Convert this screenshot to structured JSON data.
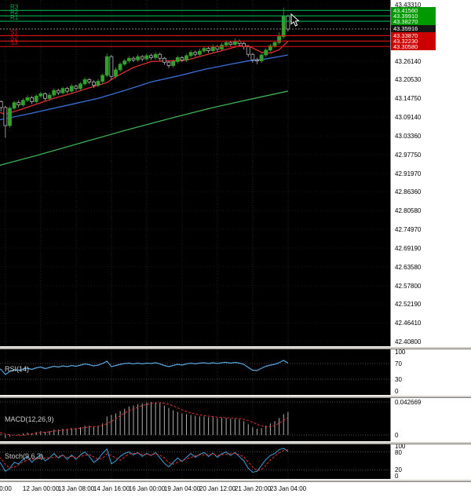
{
  "colors": {
    "background": "#000000",
    "axis_background": "#ffffff",
    "grid": "#242424",
    "hgrid": "#181818",
    "bull_candle": "#33a02c",
    "bear_candle": "#000000",
    "candle_outline": "#b8b8b8",
    "resistance_line": "#00b050",
    "support_line": "#dd1111",
    "resistance_badge": "#009a00",
    "support_badge": "#cc0000",
    "price_badge": "#151515",
    "current_price_line": "#9a9a9a",
    "rsi_line": "#58a6dd",
    "macd_histogram": "#b0b0b0",
    "macd_signal": "#e03232",
    "stoch_main": "#3f9fd8",
    "stoch_signal": "#e03232",
    "guide_dotted": "#505050",
    "indicator_label_text": "#cfcfcf",
    "axis_text": "#000000"
  },
  "chart_data": {
    "type": "candlestick",
    "description": "4-hour forex candlestick chart with pivot resistance/support levels, three moving averages and RSI, MACD, Stochastic subpanels",
    "time_axis_labels": [
      "0:00",
      "12 Jan 00:00",
      "13 Jan 08:00",
      "14 Jan 16:00",
      "16 Jan 00:00",
      "19 Jan 04:00",
      "20 Jan 12:00",
      "21 Jan 20:00",
      "23 Jan 04:00"
    ],
    "price_axis_labels": [
      "43.43310",
      "43.26140",
      "43.20530",
      "43.14750",
      "43.09140",
      "43.03360",
      "42.97750",
      "42.91970",
      "42.86360",
      "42.80580",
      "42.74970",
      "42.69190",
      "42.63580",
      "42.57800",
      "42.52190",
      "42.46410",
      "42.40800"
    ],
    "pivots": [
      {
        "name": "R3",
        "price": 43.4156,
        "label": "43.41560",
        "kind": "resistance"
      },
      {
        "name": "R2",
        "price": 43.3991,
        "label": "43.39910",
        "kind": "resistance"
      },
      {
        "name": "R1",
        "price": 43.3827,
        "label": "43.38270",
        "kind": "resistance"
      },
      {
        "name": "S1",
        "price": 43.3387,
        "label": "43.33870",
        "kind": "support"
      },
      {
        "name": "S2",
        "price": 43.3223,
        "label": "43.32230",
        "kind": "support"
      },
      {
        "name": "S3",
        "price": 43.3058,
        "label": "43.30580",
        "kind": "support"
      }
    ],
    "current_price": {
      "price": 43.35916,
      "label": "43.35916"
    },
    "candles": [
      [
        43.155,
        43.161,
        43.142,
        43.148
      ],
      [
        43.148,
        43.153,
        43.13,
        43.138
      ],
      [
        43.138,
        43.142,
        43.108,
        43.12
      ],
      [
        43.12,
        43.126,
        43.028,
        43.065
      ],
      [
        43.065,
        43.124,
        43.058,
        43.118
      ],
      [
        43.118,
        43.141,
        43.112,
        43.135
      ],
      [
        43.135,
        43.142,
        43.12,
        43.128
      ],
      [
        43.128,
        43.148,
        43.122,
        43.142
      ],
      [
        43.142,
        43.157,
        43.136,
        43.15
      ],
      [
        43.15,
        43.155,
        43.131,
        43.138
      ],
      [
        43.138,
        43.161,
        43.133,
        43.155
      ],
      [
        43.155,
        43.169,
        43.149,
        43.162
      ],
      [
        43.162,
        43.166,
        43.141,
        43.148
      ],
      [
        43.148,
        43.165,
        43.142,
        43.158
      ],
      [
        43.158,
        43.178,
        43.152,
        43.172
      ],
      [
        43.172,
        43.177,
        43.158,
        43.165
      ],
      [
        43.165,
        43.184,
        43.16,
        43.178
      ],
      [
        43.178,
        43.183,
        43.163,
        43.17
      ],
      [
        43.17,
        43.191,
        43.165,
        43.185
      ],
      [
        43.185,
        43.19,
        43.171,
        43.178
      ],
      [
        43.178,
        43.198,
        43.172,
        43.192
      ],
      [
        43.192,
        43.212,
        43.187,
        43.205
      ],
      [
        43.205,
        43.21,
        43.191,
        43.198
      ],
      [
        43.198,
        43.203,
        43.18,
        43.188
      ],
      [
        43.188,
        43.207,
        43.182,
        43.2
      ],
      [
        43.2,
        43.224,
        43.194,
        43.218
      ],
      [
        43.218,
        43.285,
        43.212,
        43.275
      ],
      [
        43.275,
        43.28,
        43.205,
        43.215
      ],
      [
        43.215,
        43.242,
        43.208,
        43.235
      ],
      [
        43.235,
        43.258,
        43.228,
        43.252
      ],
      [
        43.252,
        43.268,
        43.246,
        43.262
      ],
      [
        43.262,
        43.277,
        43.255,
        43.27
      ],
      [
        43.27,
        43.276,
        43.258,
        43.265
      ],
      [
        43.265,
        43.282,
        43.259,
        43.275
      ],
      [
        43.275,
        43.28,
        43.261,
        43.268
      ],
      [
        43.268,
        43.285,
        43.262,
        43.278
      ],
      [
        43.278,
        43.284,
        43.265,
        43.272
      ],
      [
        43.272,
        43.289,
        43.266,
        43.282
      ],
      [
        43.282,
        43.287,
        43.263,
        43.27
      ],
      [
        43.27,
        43.274,
        43.25,
        43.258
      ],
      [
        43.258,
        43.263,
        43.24,
        43.248
      ],
      [
        43.248,
        43.266,
        43.242,
        43.26
      ],
      [
        43.26,
        43.278,
        43.254,
        43.272
      ],
      [
        43.272,
        43.277,
        43.258,
        43.265
      ],
      [
        43.265,
        43.284,
        43.259,
        43.278
      ],
      [
        43.278,
        43.295,
        43.272,
        43.288
      ],
      [
        43.288,
        43.293,
        43.275,
        43.282
      ],
      [
        43.282,
        43.299,
        43.276,
        43.292
      ],
      [
        43.292,
        43.307,
        43.286,
        43.3
      ],
      [
        43.3,
        43.305,
        43.286,
        43.293
      ],
      [
        43.293,
        43.312,
        43.287,
        43.305
      ],
      [
        43.305,
        43.31,
        43.291,
        43.298
      ],
      [
        43.298,
        43.317,
        43.292,
        43.31
      ],
      [
        43.31,
        43.325,
        43.304,
        43.318
      ],
      [
        43.318,
        43.323,
        43.305,
        43.312
      ],
      [
        43.312,
        43.33,
        43.306,
        43.322
      ],
      [
        43.322,
        43.327,
        43.308,
        43.315
      ],
      [
        43.315,
        43.32,
        43.297,
        43.305
      ],
      [
        43.305,
        43.309,
        43.274,
        43.282
      ],
      [
        43.282,
        43.286,
        43.256,
        43.265
      ],
      [
        43.265,
        43.271,
        43.252,
        43.262
      ],
      [
        43.262,
        43.286,
        43.256,
        43.28
      ],
      [
        43.28,
        43.301,
        43.274,
        43.295
      ],
      [
        43.295,
        43.314,
        43.289,
        43.308
      ],
      [
        43.308,
        43.324,
        43.302,
        43.318
      ],
      [
        43.318,
        43.349,
        43.312,
        43.336
      ],
      [
        43.336,
        43.424,
        43.33,
        43.398
      ],
      [
        43.398,
        43.402,
        43.352,
        43.359
      ]
    ],
    "moving_averages": [
      {
        "name": "ma-fast-red",
        "color": "#e03030",
        "points": [
          [
            0,
            43.112
          ],
          [
            3,
            43.1
          ],
          [
            6,
            43.112
          ],
          [
            10,
            43.13
          ],
          [
            14,
            43.148
          ],
          [
            18,
            43.163
          ],
          [
            22,
            43.18
          ],
          [
            26,
            43.196
          ],
          [
            28,
            43.214
          ],
          [
            32,
            43.242
          ],
          [
            36,
            43.26
          ],
          [
            40,
            43.262
          ],
          [
            44,
            43.264
          ],
          [
            48,
            43.279
          ],
          [
            52,
            43.293
          ],
          [
            56,
            43.308
          ],
          [
            58,
            43.308
          ],
          [
            61,
            43.288
          ],
          [
            63,
            43.286
          ],
          [
            65,
            43.296
          ],
          [
            67,
            43.322
          ]
        ]
      },
      {
        "name": "ma-mid-blue",
        "color": "#3b6fd4",
        "points": [
          [
            0,
            43.078
          ],
          [
            8,
            43.1
          ],
          [
            16,
            43.124
          ],
          [
            24,
            43.148
          ],
          [
            30,
            43.172
          ],
          [
            36,
            43.198
          ],
          [
            42,
            43.216
          ],
          [
            48,
            43.236
          ],
          [
            54,
            43.252
          ],
          [
            58,
            43.262
          ],
          [
            62,
            43.268
          ],
          [
            67,
            43.28
          ]
        ]
      },
      {
        "name": "ma-slow-green",
        "color": "#3cb054",
        "points": [
          [
            0,
            42.938
          ],
          [
            10,
            42.974
          ],
          [
            20,
            43.012
          ],
          [
            30,
            43.05
          ],
          [
            40,
            43.086
          ],
          [
            50,
            43.12
          ],
          [
            58,
            43.144
          ],
          [
            67,
            43.17
          ]
        ]
      }
    ],
    "indicators": [
      {
        "name": "RSI",
        "label": "RSI(14)",
        "axis_labels": [
          "100",
          "70",
          "30",
          "0"
        ],
        "guides": [
          70,
          30
        ],
        "values": [
          60,
          58,
          55,
          42,
          50,
          54,
          53,
          56,
          58,
          55,
          59,
          61,
          57,
          60,
          63,
          61,
          64,
          62,
          65,
          63,
          66,
          69,
          67,
          64,
          66,
          70,
          76,
          62,
          65,
          68,
          70,
          71,
          69,
          71,
          69,
          71,
          70,
          72,
          69,
          65,
          62,
          65,
          68,
          66,
          69,
          71,
          69,
          71,
          72,
          70,
          72,
          70,
          72,
          73,
          71,
          73,
          71,
          68,
          60,
          53,
          52,
          58,
          63,
          66,
          68,
          72,
          78,
          71
        ]
      },
      {
        "name": "MACD",
        "label": "MACD(12,26,9)",
        "axis_labels": [
          "0.042669",
          "0"
        ],
        "guides": [
          0.042669,
          0
        ],
        "values": [
          0.004,
          0.003,
          0.001,
          -0.004,
          -0.002,
          0.0,
          0.001,
          0.002,
          0.003,
          0.002,
          0.004,
          0.005,
          0.004,
          0.005,
          0.007,
          0.007,
          0.008,
          0.008,
          0.009,
          0.009,
          0.01,
          0.012,
          0.012,
          0.011,
          0.012,
          0.015,
          0.024,
          0.026,
          0.028,
          0.031,
          0.034,
          0.037,
          0.038,
          0.04,
          0.041,
          0.042,
          0.0427,
          0.042,
          0.041,
          0.038,
          0.035,
          0.032,
          0.03,
          0.028,
          0.027,
          0.026,
          0.025,
          0.024,
          0.024,
          0.023,
          0.023,
          0.022,
          0.022,
          0.022,
          0.021,
          0.021,
          0.02,
          0.018,
          0.014,
          0.01,
          0.008,
          0.009,
          0.012,
          0.015,
          0.018,
          0.022,
          0.027,
          0.03
        ]
      },
      {
        "name": "Stochastic",
        "label": "Stoch(9,6,3)",
        "axis_labels": [
          "100",
          "80",
          "20",
          "0"
        ],
        "guides": [
          80,
          20
        ],
        "values": [
          75,
          60,
          40,
          15,
          25,
          45,
          40,
          55,
          65,
          45,
          60,
          70,
          50,
          60,
          75,
          60,
          70,
          55,
          70,
          55,
          70,
          80,
          65,
          45,
          55,
          75,
          90,
          40,
          50,
          65,
          75,
          80,
          70,
          78,
          65,
          75,
          68,
          78,
          60,
          42,
          30,
          45,
          60,
          48,
          62,
          75,
          62,
          72,
          78,
          65,
          76,
          62,
          74,
          80,
          68,
          78,
          64,
          50,
          25,
          12,
          15,
          35,
          55,
          68,
          75,
          88,
          92,
          82
        ]
      }
    ]
  }
}
